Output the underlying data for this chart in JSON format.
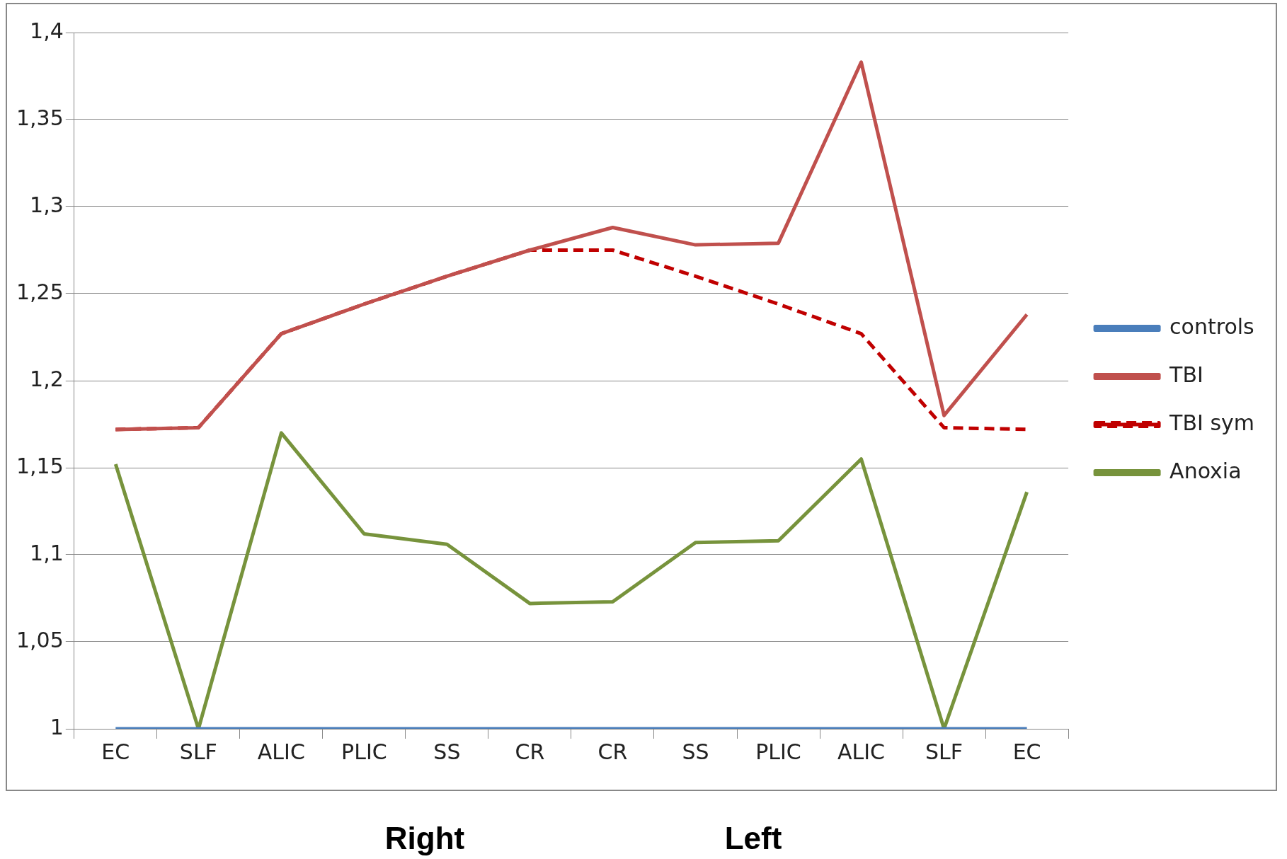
{
  "chart_data": {
    "type": "line",
    "categories": [
      "EC",
      "SLF",
      "ALIC",
      "PLIC",
      "SS",
      "CR",
      "CR",
      "SS",
      "PLIC",
      "ALIC",
      "SLF",
      "EC"
    ],
    "series": [
      {
        "name": "controls",
        "color": "#4a7ebb",
        "values": [
          1,
          1,
          1,
          1,
          1,
          1,
          1,
          1,
          1,
          1,
          1,
          1
        ]
      },
      {
        "name": "TBI",
        "color": "#c0504d",
        "values": [
          1.172,
          1.173,
          1.227,
          1.244,
          1.26,
          1.275,
          1.288,
          1.278,
          1.279,
          1.383,
          1.18,
          1.238
        ]
      },
      {
        "name": "TBI sym",
        "color": "#c00000",
        "line_style": "dashed",
        "values": [
          1.172,
          1.173,
          1.227,
          1.244,
          1.26,
          1.275,
          1.275,
          1.26,
          1.244,
          1.227,
          1.173,
          1.172
        ]
      },
      {
        "name": "Anoxia",
        "color": "#77933c",
        "values": [
          1.152,
          1,
          1.17,
          1.112,
          1.106,
          1.072,
          1.073,
          1.107,
          1.108,
          1.155,
          1,
          1.136
        ]
      }
    ],
    "ylim": [
      1,
      1.4
    ],
    "yticks": [
      {
        "value": 1,
        "label": "1"
      },
      {
        "value": 1.05,
        "label": "1,05"
      },
      {
        "value": 1.1,
        "label": "1,1"
      },
      {
        "value": 1.15,
        "label": "1,15"
      },
      {
        "value": 1.2,
        "label": "1,2"
      },
      {
        "value": 1.25,
        "label": "1,25"
      },
      {
        "value": 1.3,
        "label": "1,3"
      },
      {
        "value": 1.35,
        "label": "1,35"
      },
      {
        "value": 1.4,
        "label": "1,4"
      }
    ],
    "grid": "y",
    "legend": "right",
    "marker": "none",
    "line_style": "solid",
    "annotations": [
      "Right",
      "Left"
    ]
  }
}
